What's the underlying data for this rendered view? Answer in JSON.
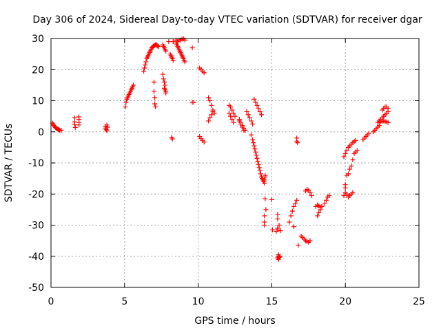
{
  "chart_data": {
    "type": "scatter",
    "title": "Day 306 of 2024, Sidereal Day-to-day VTEC variation (SDTVAR) for receiver dgar",
    "xlabel": "GPS time / hours",
    "ylabel": "SDTVAR / TECUs",
    "xlim": [
      0,
      25
    ],
    "ylim": [
      -50,
      30
    ],
    "xticks": [
      "0",
      "5",
      "10",
      "15",
      "20",
      "25"
    ],
    "yticks": [
      "-50",
      "-40",
      "-30",
      "-20",
      "-10",
      "0",
      "10",
      "20",
      "30"
    ],
    "grid": true,
    "marker": "plus",
    "color": "#ff0000",
    "series": [
      {
        "name": "SDTVAR",
        "x": [
          0.1,
          0.15,
          0.2,
          0.25,
          0.3,
          0.35,
          0.4,
          0.45,
          0.5,
          0.55,
          0.6,
          0.7,
          1.6,
          1.6,
          1.6,
          1.65,
          1.9,
          1.9,
          1.9,
          1.9,
          3.7,
          3.7,
          3.75,
          3.8,
          3.8,
          3.85,
          5.05,
          5.1,
          5.15,
          5.2,
          5.25,
          5.3,
          5.35,
          5.4,
          5.45,
          5.5,
          5.55,
          5.6,
          6.3,
          6.35,
          6.4,
          6.45,
          6.5,
          6.55,
          6.6,
          6.65,
          6.7,
          6.75,
          6.8,
          6.85,
          6.9,
          6.95,
          7.0,
          7.05,
          7.1,
          7.15,
          7.2,
          7.25,
          7.3,
          7.0,
          7.0,
          7.05,
          7.05,
          7.1,
          7.6,
          7.65,
          7.7,
          7.75,
          7.8,
          7.6,
          7.65,
          7.7,
          7.75,
          7.7,
          7.75,
          7.8,
          7.8,
          8.1,
          8.15,
          8.2,
          8.25,
          8.3,
          8.0,
          8.3,
          8.5,
          8.55,
          8.6,
          8.65,
          8.7,
          8.75,
          8.8,
          8.85,
          8.9,
          8.95,
          9.0,
          9.05,
          9.1,
          8.5,
          8.6,
          8.7,
          8.8,
          8.9,
          9.0,
          9.1,
          8.2,
          8.25,
          9.6,
          9.6,
          9.7,
          10.1,
          10.2,
          10.3,
          10.4,
          10.1,
          10.2,
          10.3,
          10.4,
          10.7,
          10.8,
          10.9,
          11.0,
          11.1,
          10.7,
          10.8,
          10.9,
          11.0,
          12.1,
          12.2,
          12.3,
          12.4,
          12.5,
          12.1,
          12.2,
          12.3,
          12.4,
          12.8,
          12.9,
          13.0,
          13.1,
          13.2,
          12.8,
          12.9,
          13.0,
          13.1,
          13.3,
          13.4,
          13.5,
          13.6,
          13.7,
          13.8,
          13.9,
          14.0,
          14.1,
          14.2,
          14.3,
          13.6,
          13.7,
          13.75,
          13.8,
          13.85,
          13.9,
          13.95,
          14.0,
          14.05,
          14.1,
          14.15,
          14.2,
          14.25,
          14.3,
          14.35,
          14.4,
          14.45,
          14.5,
          14.55,
          14.6,
          14.5,
          14.5,
          14.5,
          14.5,
          14.55,
          14.55,
          15.0,
          15.05,
          15.3,
          15.4,
          15.4,
          15.4,
          15.4,
          15.45,
          15.4,
          15.45,
          15.5,
          15.45,
          15.5,
          15.55,
          15.6,
          15.5,
          16.2,
          16.3,
          16.4,
          16.5,
          16.6,
          16.7,
          16.8,
          16.5,
          16.7,
          16.7,
          16.75,
          17.0,
          17.1,
          17.2,
          17.3,
          17.4,
          17.5,
          17.6,
          17.3,
          17.4,
          17.5,
          17.6,
          17.7,
          18.0,
          18.1,
          18.2,
          18.3,
          18.4,
          18.1,
          18.2,
          18.3,
          18.4,
          18.6,
          18.7,
          18.8,
          18.9,
          19.9,
          20.0,
          20.1,
          20.2,
          20.3,
          20.4,
          20.5,
          20.6,
          20.7,
          19.9,
          20.0,
          20.1,
          20.2,
          20.3,
          20.4,
          20.5,
          20.0,
          20.0,
          20.1,
          20.2,
          20.3,
          20.4,
          20.5,
          20.6,
          20.7,
          20.8,
          21.2,
          21.3,
          21.4,
          21.5,
          21.6,
          21.9,
          22.0,
          22.1,
          22.2,
          22.3,
          22.2,
          22.3,
          22.4,
          22.5,
          22.6,
          22.7,
          22.8,
          22.9,
          22.5,
          22.6,
          22.7,
          22.8,
          22.9,
          22.3,
          22.4,
          22.5,
          22.6,
          22.7,
          22.8,
          22.9
        ],
        "y": [
          2.8,
          2.4,
          2.0,
          1.7,
          1.4,
          1.2,
          1.0,
          0.9,
          0.8,
          0.6,
          0.5,
          0.5,
          4.5,
          3.2,
          2.4,
          1.4,
          4.8,
          4.0,
          3.0,
          2.2,
          1.8,
          1.2,
          0.7,
          0.3,
          2.2,
          1.5,
          8.0,
          9.5,
          10.5,
          11.0,
          11.5,
          12.0,
          12.5,
          13.0,
          13.5,
          14.0,
          14.5,
          15.0,
          19.5,
          20.5,
          21.5,
          22.5,
          23.5,
          24.0,
          24.5,
          25.0,
          25.5,
          26.0,
          26.5,
          27.0,
          27.3,
          27.5,
          27.7,
          27.8,
          28.0,
          28.0,
          27.8,
          27.6,
          27.4,
          16.0,
          13.0,
          11.0,
          9.0,
          8.0,
          28.0,
          27.5,
          27.0,
          26.5,
          26.0,
          18.5,
          17.0,
          16.0,
          15.0,
          14.0,
          13.5,
          13.0,
          12.5,
          25.0,
          24.5,
          24.0,
          23.5,
          23.0,
          29.0,
          29.0,
          28.5,
          28.0,
          27.5,
          27.0,
          26.5,
          26.0,
          25.5,
          25.0,
          24.5,
          24.0,
          23.5,
          23.0,
          22.5,
          29.5,
          29.0,
          29.5,
          29.5,
          29.8,
          29.9,
          29.5,
          -1.8,
          -2.3,
          27.0,
          9.5,
          9.5,
          20.5,
          20.0,
          19.5,
          19.0,
          -1.5,
          -2.2,
          -2.8,
          -3.3,
          11.0,
          10.0,
          8.5,
          7.0,
          6.0,
          3.5,
          4.5,
          5.5,
          6.5,
          8.5,
          8.0,
          7.0,
          6.0,
          5.0,
          6.0,
          5.0,
          4.0,
          3.0,
          4.0,
          3.0,
          2.0,
          1.0,
          0.5,
          3.5,
          2.5,
          1.5,
          0.5,
          6.5,
          5.5,
          4.5,
          3.5,
          2.5,
          10.5,
          9.5,
          8.5,
          7.5,
          6.5,
          5.5,
          -1.0,
          -2.5,
          -3.5,
          -4.5,
          -5.5,
          -6.5,
          -7.5,
          -8.5,
          -9.5,
          -10.5,
          -11.5,
          -12.5,
          -13.5,
          -14.5,
          -15.0,
          -15.5,
          -16.0,
          -15.5,
          -14.5,
          -25.0,
          -27.0,
          -29.0,
          -30.0,
          -16.5,
          -14.0,
          -21.5,
          -21.8,
          -31.5,
          -32.0,
          -28.0,
          -26.5,
          -31.5,
          -31.0,
          -40.0,
          -40.5,
          -39.5,
          -40.3,
          -41.0,
          -40.5,
          -40.0,
          -31.8,
          -30.0,
          -29.0,
          -27.0,
          -25.5,
          -24.0,
          -23.0,
          -22.0,
          -36.5,
          -30.5,
          -3.0,
          -2.0,
          -3.5,
          -33.5,
          -34.0,
          -34.5,
          -35.0,
          -35.3,
          -35.5,
          -35.0,
          -19.0,
          -18.5,
          -18.8,
          -19.5,
          -20.5,
          -24.0,
          -23.5,
          -23.8,
          -24.2,
          -24.0,
          -27.0,
          -26.0,
          -25.0,
          -24.0,
          -23.0,
          -22.0,
          -21.0,
          -20.5,
          -8.0,
          -7.0,
          -6.0,
          -5.0,
          -4.5,
          -4.0,
          -3.5,
          -3.0,
          -2.8,
          -20.5,
          -19.5,
          -20.0,
          -21.0,
          -20.5,
          -20.0,
          -19.5,
          -18.0,
          -17.0,
          -14.0,
          -13.5,
          -12.0,
          -11.0,
          -9.0,
          -7.0,
          -6.5,
          -6.0,
          -2.5,
          -2.0,
          -1.5,
          -1.0,
          -0.5,
          0.0,
          0.5,
          1.0,
          1.5,
          2.0,
          3.0,
          3.5,
          4.0,
          4.5,
          5.0,
          5.5,
          6.0,
          6.5,
          7.0,
          7.5,
          8.0,
          8.0,
          7.5,
          3.0,
          3.2,
          3.4,
          3.5,
          3.3,
          3.2,
          3.0
        ]
      }
    ]
  }
}
